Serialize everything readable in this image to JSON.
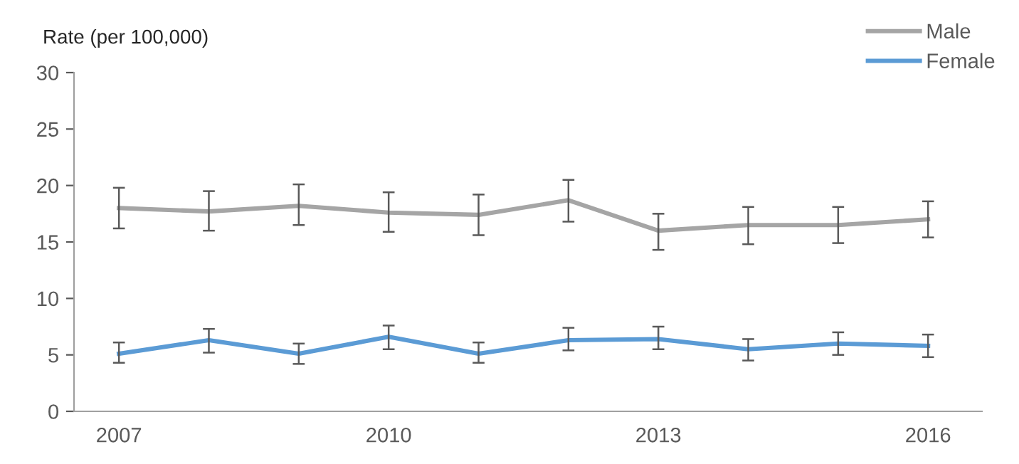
{
  "chart_data": {
    "type": "line",
    "ylabel": "Rate (per 100,000)",
    "x": [
      2007,
      2008,
      2009,
      2010,
      2011,
      2012,
      2013,
      2014,
      2015,
      2016
    ],
    "xlim": [
      2006.5,
      2016.6
    ],
    "xticks": [
      2007,
      2010,
      2013,
      2016
    ],
    "ylim": [
      0,
      30
    ],
    "yticks": [
      0,
      5,
      10,
      15,
      20,
      25,
      30
    ],
    "grid": false,
    "legend": "top right",
    "marker": "none",
    "line_style": "solid",
    "series": [
      {
        "name": "Male",
        "color": "#a5a5a5",
        "values": [
          18.0,
          17.7,
          18.2,
          17.6,
          17.4,
          18.7,
          16.0,
          16.5,
          16.5,
          17.0
        ],
        "errors": [
          [
            16.2,
            19.8
          ],
          [
            16.0,
            19.5
          ],
          [
            16.5,
            20.1
          ],
          [
            15.9,
            19.4
          ],
          [
            15.6,
            19.2
          ],
          [
            16.8,
            20.5
          ],
          [
            14.3,
            17.5
          ],
          [
            14.8,
            18.1
          ],
          [
            14.9,
            18.1
          ],
          [
            15.4,
            18.6
          ]
        ]
      },
      {
        "name": "Female",
        "color": "#5b9bd5",
        "values": [
          5.1,
          6.3,
          5.1,
          6.6,
          5.1,
          6.3,
          6.4,
          5.5,
          6.0,
          5.8
        ],
        "errors": [
          [
            4.3,
            6.1
          ],
          [
            5.2,
            7.3
          ],
          [
            4.2,
            6.0
          ],
          [
            5.5,
            7.6
          ],
          [
            4.3,
            6.1
          ],
          [
            5.4,
            7.4
          ],
          [
            5.5,
            7.5
          ],
          [
            4.5,
            6.4
          ],
          [
            5.0,
            7.0
          ],
          [
            4.8,
            6.8
          ]
        ]
      }
    ]
  }
}
